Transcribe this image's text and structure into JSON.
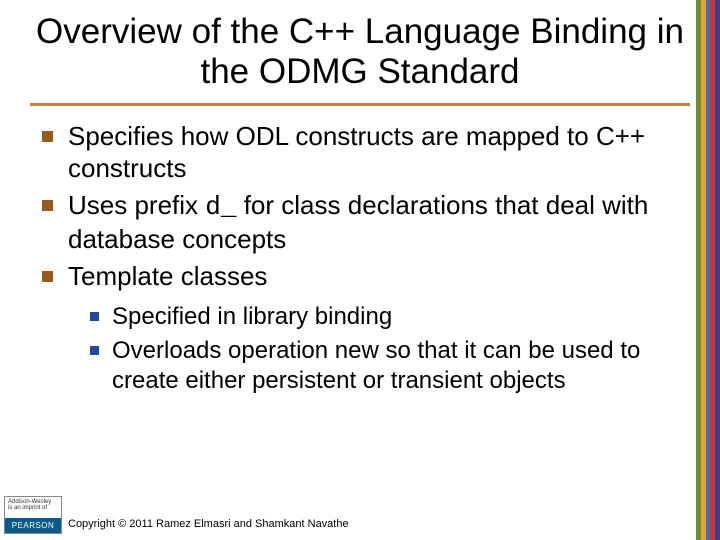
{
  "title": "Overview of the C++ Language Binding in the ODMG Standard",
  "underline_color": "#c7833a",
  "bullets": {
    "main_color": "#9a5a1a",
    "sub_color": "#1f4aa0",
    "items": [
      {
        "text": "Specifies how ODL constructs are mapped to C++ constructs"
      },
      {
        "prefix": "Uses prefix ",
        "code": "d_",
        "suffix": " for class declarations that deal with database concepts"
      },
      {
        "text": "Template classes",
        "sub": [
          {
            "text": "Specified in library binding"
          },
          {
            "text": "Overloads operation new so that it can be used to create either persistent or transient objects"
          }
        ]
      }
    ]
  },
  "stripe_colors": [
    "#6a8f2f",
    "#e8a03a",
    "#4a6aa8",
    "#c03a3a",
    "#4a3a8a"
  ],
  "logo": {
    "top1": "Addison-Wesley",
    "top2": "is an imprint of",
    "brand": "PEARSON",
    "brand_bg": "#0a5a8a"
  },
  "copyright": "Copyright © 2011 Ramez Elmasri and Shamkant Navathe"
}
